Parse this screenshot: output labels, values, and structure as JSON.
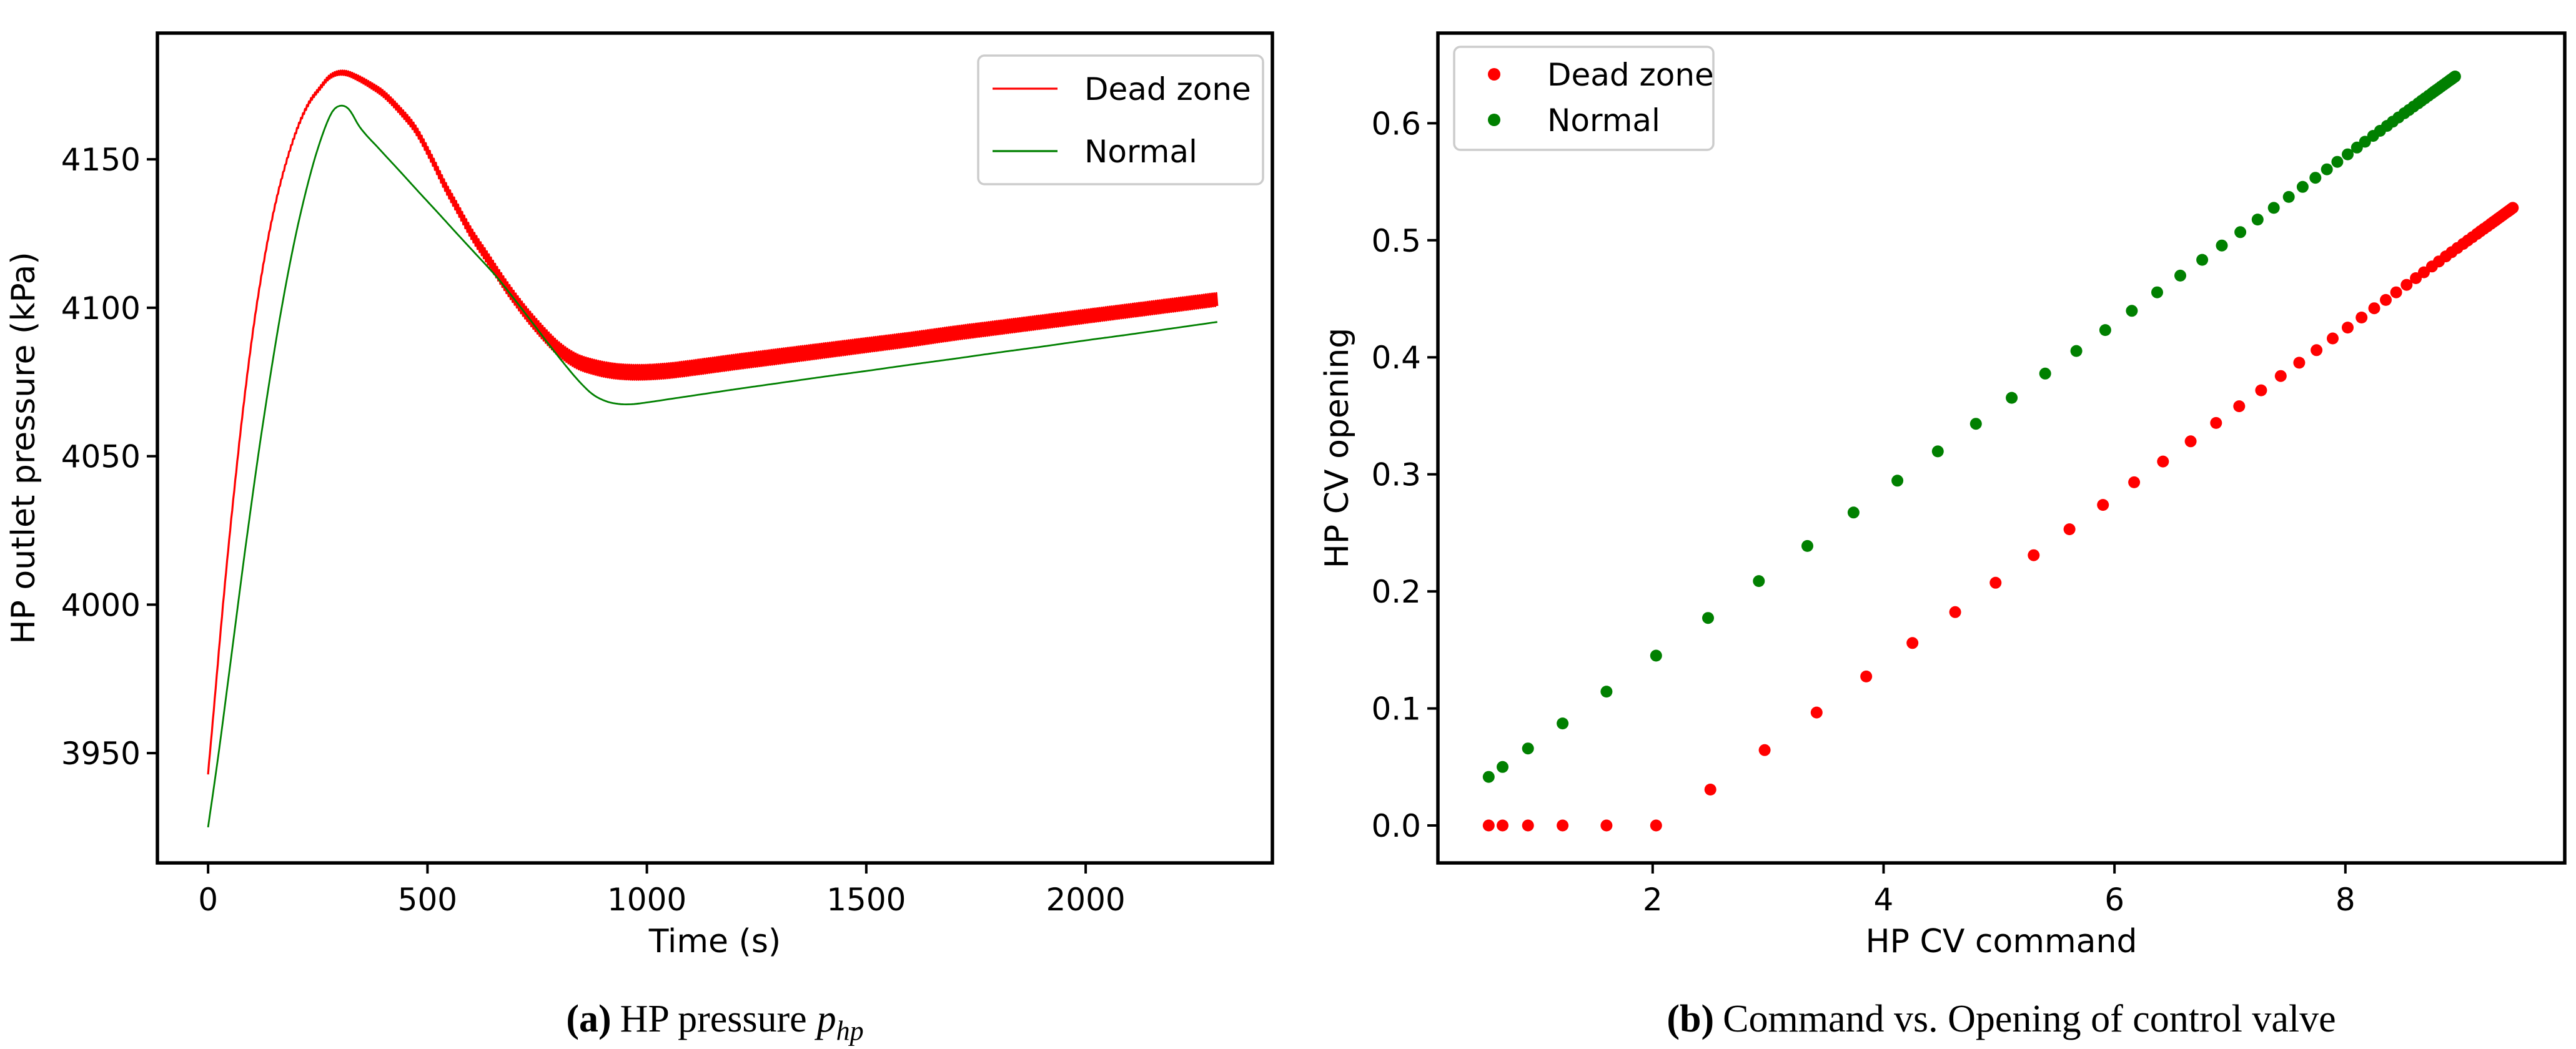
{
  "figure": {
    "background": "#ffffff",
    "text_color": "#000000",
    "colors": {
      "dead_zone": "#ff0000",
      "normal": "#008000",
      "legend_edge": "#cccccc",
      "spine": "#000000"
    }
  },
  "chart_data": [
    {
      "id": "pressure",
      "type": "line",
      "xlabel": "Time (s)",
      "ylabel": "HP outlet pressure (kPa)",
      "xlim": [
        -115.5,
        2425.5
      ],
      "ylim": [
        3913,
        4192.5
      ],
      "xticks": [
        0,
        500,
        1000,
        1500,
        2000
      ],
      "xtick_labels": [
        "0",
        "500",
        "1000",
        "1500",
        "2000"
      ],
      "yticks": [
        3950,
        4000,
        4050,
        4100,
        4150
      ],
      "ytick_labels": [
        "3950",
        "4000",
        "4050",
        "4100",
        "4150"
      ],
      "grid": false,
      "legend": {
        "position": "upper right",
        "entries": [
          {
            "label": "Dead zone",
            "color": "#ff0000",
            "marker": "line"
          },
          {
            "label": "Normal",
            "color": "#008000",
            "marker": "line"
          }
        ]
      },
      "series": [
        {
          "name": "Dead zone",
          "color": "#ff0000",
          "style": "zigzag-line",
          "zigzag_period_s": 4.8,
          "zigzag_amplitude_kpa": [
            [
              0,
              0.2
            ],
            [
              150,
              0.35
            ],
            [
              295,
              0.7
            ],
            [
              450,
              1.3
            ],
            [
              600,
              1.9
            ],
            [
              750,
              2.3
            ],
            [
              900,
              2.5
            ],
            [
              1300,
              2.5
            ],
            [
              1700,
              2.3
            ],
            [
              2300,
              2.2
            ]
          ],
          "points": [
            [
              0,
              3943
            ],
            [
              15,
              3968
            ],
            [
              34,
              4000
            ],
            [
              55,
              4032
            ],
            [
              80,
              4066
            ],
            [
              105,
              4095
            ],
            [
              130,
              4118
            ],
            [
              155,
              4136
            ],
            [
              180,
              4150
            ],
            [
              205,
              4161
            ],
            [
              230,
              4169
            ],
            [
              255,
              4174
            ],
            [
              275,
              4177.5
            ],
            [
              295,
              4179
            ],
            [
              315,
              4179
            ],
            [
              340,
              4177.5
            ],
            [
              370,
              4175
            ],
            [
              400,
              4172
            ],
            [
              440,
              4166
            ],
            [
              473,
              4160
            ],
            [
              510,
              4150
            ],
            [
              540,
              4141
            ],
            [
              570,
              4133
            ],
            [
              600,
              4125
            ],
            [
              640,
              4116
            ],
            [
              680,
              4107
            ],
            [
              720,
              4099
            ],
            [
              760,
              4092
            ],
            [
              800,
              4086
            ],
            [
              840,
              4082
            ],
            [
              880,
              4080
            ],
            [
              920,
              4078.8
            ],
            [
              960,
              4078.3
            ],
            [
              1000,
              4078.3
            ],
            [
              1050,
              4078.8
            ],
            [
              1100,
              4079.7
            ],
            [
              1150,
              4080.7
            ],
            [
              1200,
              4081.7
            ],
            [
              1300,
              4083.6
            ],
            [
              1400,
              4085.5
            ],
            [
              1500,
              4087.4
            ],
            [
              1600,
              4089.3
            ],
            [
              1700,
              4091.4
            ],
            [
              1800,
              4093.3
            ],
            [
              1900,
              4095.2
            ],
            [
              2000,
              4097.1
            ],
            [
              2100,
              4099
            ],
            [
              2200,
              4100.9
            ],
            [
              2300,
              4102.8
            ]
          ]
        },
        {
          "name": "Normal",
          "color": "#008000",
          "style": "line",
          "points": [
            [
              0,
              3925
            ],
            [
              25,
              3951
            ],
            [
              55,
              3985
            ],
            [
              85,
              4019
            ],
            [
              115,
              4051
            ],
            [
              145,
              4080
            ],
            [
              175,
              4106
            ],
            [
              205,
              4128
            ],
            [
              235,
              4146
            ],
            [
              260,
              4158
            ],
            [
              283,
              4166
            ],
            [
              300,
              4168
            ],
            [
              320,
              4167
            ],
            [
              345,
              4161
            ],
            [
              390,
              4153.5
            ],
            [
              435,
              4146.3
            ],
            [
              480,
              4139
            ],
            [
              525,
              4131.8
            ],
            [
              570,
              4124.5
            ],
            [
              615,
              4117.3
            ],
            [
              657,
              4110.5
            ],
            [
              700,
              4102.5
            ],
            [
              740,
              4094.8
            ],
            [
              780,
              4087
            ],
            [
              815,
              4080.5
            ],
            [
              845,
              4075.3
            ],
            [
              875,
              4071
            ],
            [
              905,
              4068.6
            ],
            [
              935,
              4067.6
            ],
            [
              965,
              4067.5
            ],
            [
              1000,
              4068.1
            ],
            [
              1050,
              4069.2
            ],
            [
              1100,
              4070.3
            ],
            [
              1150,
              4071.4
            ],
            [
              1200,
              4072.5
            ],
            [
              1300,
              4074.6
            ],
            [
              1400,
              4076.7
            ],
            [
              1500,
              4078.7
            ],
            [
              1600,
              4080.8
            ],
            [
              1700,
              4082.8
            ],
            [
              1800,
              4084.9
            ],
            [
              1900,
              4086.9
            ],
            [
              2000,
              4089
            ],
            [
              2100,
              4091
            ],
            [
              2200,
              4093.1
            ],
            [
              2300,
              4095.2
            ]
          ]
        }
      ],
      "caption": {
        "index": "(a)",
        "text": "HP pressure",
        "symbol": "p",
        "symbol_sub": "hp"
      }
    },
    {
      "id": "valve",
      "type": "scatter",
      "xlabel": "HP CV command",
      "ylabel": "HP CV opening",
      "xlim": [
        0.14,
        9.9
      ],
      "ylim": [
        -0.032,
        0.677
      ],
      "xticks": [
        2,
        4,
        6,
        8
      ],
      "xtick_labels": [
        "2",
        "4",
        "6",
        "8"
      ],
      "yticks": [
        0.0,
        0.1,
        0.2,
        0.3,
        0.4,
        0.5,
        0.6
      ],
      "ytick_labels": [
        "0.0",
        "0.1",
        "0.2",
        "0.3",
        "0.4",
        "0.5",
        "0.6"
      ],
      "grid": false,
      "marker_radius_px": 9.5,
      "legend": {
        "position": "upper left",
        "entries": [
          {
            "label": "Dead zone",
            "color": "#ff0000",
            "marker": "dot"
          },
          {
            "label": "Normal",
            "color": "#008000",
            "marker": "dot"
          }
        ]
      },
      "series": [
        {
          "name": "Dead zone",
          "color": "#ff0000",
          "dead_zone_threshold": 2.07,
          "gain": 0.0715,
          "points": [
            [
              0.58,
              0
            ],
            [
              0.7,
              0
            ],
            [
              0.92,
              0
            ],
            [
              1.22,
              0
            ],
            [
              1.6,
              0
            ],
            [
              2.03,
              0
            ],
            [
              2.5,
              0.0307
            ],
            [
              2.97,
              0.0644
            ],
            [
              3.42,
              0.0965
            ],
            [
              3.85,
              0.1273
            ],
            [
              4.25,
              0.1559
            ],
            [
              4.62,
              0.1823
            ],
            [
              4.97,
              0.2074
            ],
            [
              5.3,
              0.2309
            ],
            [
              5.61,
              0.2531
            ],
            [
              5.9,
              0.2739
            ],
            [
              6.17,
              0.2932
            ],
            [
              6.42,
              0.311
            ],
            [
              6.66,
              0.3282
            ],
            [
              6.88,
              0.3439
            ],
            [
              7.08,
              0.3582
            ],
            [
              7.27,
              0.3718
            ],
            [
              7.44,
              0.384
            ],
            [
              7.6,
              0.3954
            ],
            [
              7.75,
              0.4061
            ],
            [
              7.89,
              0.4161
            ],
            [
              8.02,
              0.4254
            ],
            [
              8.14,
              0.434
            ],
            [
              8.25,
              0.4419
            ],
            [
              8.35,
              0.449
            ],
            [
              8.44,
              0.4555
            ],
            [
              8.53,
              0.4619
            ],
            [
              8.61,
              0.4676
            ],
            [
              8.68,
              0.4726
            ],
            [
              8.75,
              0.4776
            ],
            [
              8.81,
              0.4819
            ],
            [
              8.87,
              0.4862
            ],
            [
              8.92,
              0.4898
            ],
            [
              8.97,
              0.4934
            ],
            [
              9.02,
              0.4969
            ],
            [
              9.06,
              0.4998
            ],
            [
              9.1,
              0.5026
            ],
            [
              9.14,
              0.5055
            ],
            [
              9.17,
              0.5077
            ],
            [
              9.2,
              0.5098
            ],
            [
              9.23,
              0.5119
            ],
            [
              9.26,
              0.5141
            ],
            [
              9.28,
              0.5155
            ],
            [
              9.3,
              0.5169
            ],
            [
              9.32,
              0.5184
            ],
            [
              9.34,
              0.5198
            ],
            [
              9.36,
              0.5212
            ],
            [
              9.38,
              0.5227
            ],
            [
              9.4,
              0.5241
            ],
            [
              9.41,
              0.5248
            ],
            [
              9.42,
              0.5255
            ],
            [
              9.43,
              0.5262
            ],
            [
              9.44,
              0.527
            ],
            [
              9.45,
              0.5277
            ]
          ]
        },
        {
          "name": "Normal",
          "color": "#008000",
          "dead_zone_threshold": 0,
          "gain": 0.0715,
          "points": [
            [
              0.58,
              0.0415
            ],
            [
              0.7,
              0.05
            ],
            [
              0.92,
              0.0658
            ],
            [
              1.22,
              0.0872
            ],
            [
              1.6,
              0.1144
            ],
            [
              2.03,
              0.1451
            ],
            [
              2.48,
              0.1773
            ],
            [
              2.92,
              0.2088
            ],
            [
              3.34,
              0.2388
            ],
            [
              3.74,
              0.2674
            ],
            [
              4.12,
              0.2946
            ],
            [
              4.47,
              0.3196
            ],
            [
              4.8,
              0.3432
            ],
            [
              5.11,
              0.3654
            ],
            [
              5.4,
              0.3861
            ],
            [
              5.67,
              0.4054
            ],
            [
              5.92,
              0.4233
            ],
            [
              6.15,
              0.4397
            ],
            [
              6.37,
              0.4555
            ],
            [
              6.57,
              0.4698
            ],
            [
              6.76,
              0.4833
            ],
            [
              6.93,
              0.4955
            ],
            [
              7.09,
              0.5069
            ],
            [
              7.24,
              0.5177
            ],
            [
              7.38,
              0.5277
            ],
            [
              7.51,
              0.537
            ],
            [
              7.63,
              0.5456
            ],
            [
              7.74,
              0.5534
            ],
            [
              7.84,
              0.5606
            ],
            [
              7.93,
              0.567
            ],
            [
              8.02,
              0.5734
            ],
            [
              8.1,
              0.5792
            ],
            [
              8.17,
              0.5842
            ],
            [
              8.24,
              0.5892
            ],
            [
              8.3,
              0.5935
            ],
            [
              8.36,
              0.5977
            ],
            [
              8.41,
              0.6013
            ],
            [
              8.46,
              0.6049
            ],
            [
              8.51,
              0.6085
            ],
            [
              8.55,
              0.6113
            ],
            [
              8.59,
              0.6142
            ],
            [
              8.63,
              0.617
            ],
            [
              8.66,
              0.6192
            ],
            [
              8.69,
              0.6213
            ],
            [
              8.72,
              0.6235
            ],
            [
              8.75,
              0.6256
            ],
            [
              8.77,
              0.6271
            ],
            [
              8.79,
              0.6285
            ],
            [
              8.81,
              0.6299
            ],
            [
              8.83,
              0.6314
            ],
            [
              8.85,
              0.6328
            ],
            [
              8.87,
              0.6342
            ],
            [
              8.88,
              0.6349
            ],
            [
              8.9,
              0.6364
            ],
            [
              8.91,
              0.6371
            ],
            [
              8.92,
              0.6377
            ],
            [
              8.93,
              0.6385
            ],
            [
              8.94,
              0.6392
            ],
            [
              8.95,
              0.6399
            ]
          ]
        }
      ],
      "caption": {
        "index": "(b)",
        "text": "Command vs. Opening of control valve",
        "symbol": "",
        "symbol_sub": ""
      }
    }
  ]
}
